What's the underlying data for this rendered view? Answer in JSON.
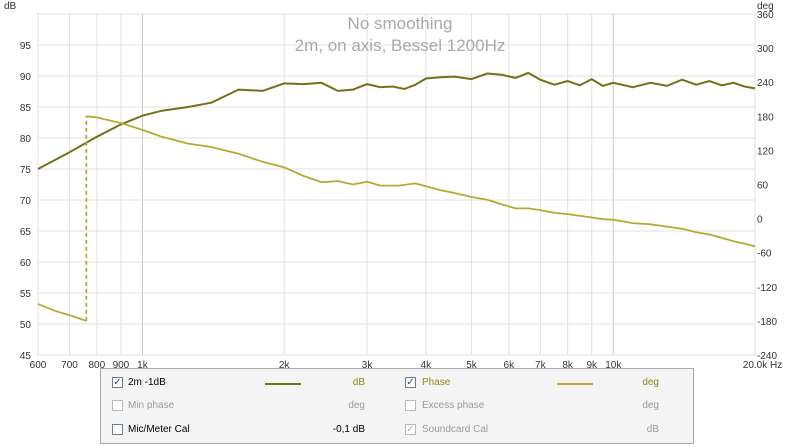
{
  "chart_data": {
    "type": "line",
    "title": "No smoothing",
    "subtitle": "2m, on axis, Bessel 1200Hz",
    "xlabel": "Hz",
    "ylabel": "dB",
    "y2label": "deg",
    "x_scale": "log",
    "xlim": [
      600,
      20000
    ],
    "ylim": [
      45,
      100
    ],
    "y2lim": [
      -240,
      360
    ],
    "x_ticks": [
      600,
      700,
      800,
      900,
      1000,
      2000,
      3000,
      4000,
      5000,
      6000,
      7000,
      8000,
      9000,
      10000,
      20000
    ],
    "x_tick_labels": [
      "600",
      "700",
      "800",
      "900",
      "1k",
      "2k",
      "3k",
      "4k",
      "5k",
      "6k",
      "7k",
      "8k",
      "9k",
      "10k",
      "20,0k"
    ],
    "y_ticks": [
      45,
      50,
      55,
      60,
      65,
      70,
      75,
      80,
      85,
      90,
      95,
      100
    ],
    "y_tick_labels": [
      "45",
      "50",
      "55",
      "60",
      "65",
      "70",
      "75",
      "80",
      "85",
      "90",
      "95",
      ""
    ],
    "y2_ticks": [
      -240,
      -180,
      -120,
      -60,
      0,
      60,
      120,
      180,
      240,
      300,
      360
    ],
    "y2_tick_labels": [
      "-240",
      "-180",
      "-120",
      "-60",
      "0",
      "60",
      "120",
      "180",
      "240",
      "300",
      "360"
    ],
    "grid": true,
    "series": [
      {
        "name": "2m -1dB",
        "axis": "left",
        "color": "#77701a",
        "x": [
          600,
          700,
          800,
          900,
          1000,
          1100,
          1250,
          1400,
          1600,
          1800,
          2000,
          2200,
          2400,
          2600,
          2800,
          3000,
          3200,
          3400,
          3600,
          3800,
          4000,
          4300,
          4600,
          5000,
          5400,
          5800,
          6200,
          6600,
          7000,
          7500,
          8000,
          8500,
          9000,
          9500,
          10000,
          11000,
          12000,
          13000,
          14000,
          15000,
          16000,
          17000,
          18000,
          19000,
          20000
        ],
        "values": [
          75,
          77.7,
          80.2,
          82.2,
          83.6,
          84.4,
          85,
          85.7,
          87.8,
          87.6,
          88.8,
          88.7,
          88.9,
          87.6,
          87.8,
          88.7,
          88.2,
          88.3,
          87.9,
          88.6,
          89.6,
          89.8,
          89.9,
          89.5,
          90.4,
          90.2,
          89.7,
          90.5,
          89.4,
          88.6,
          89.2,
          88.5,
          89.5,
          88.4,
          88.9,
          88.2,
          88.9,
          88.4,
          89.4,
          88.6,
          89.2,
          88.5,
          88.9,
          88.3,
          88.0
        ]
      },
      {
        "name": "Phase",
        "axis": "right",
        "color": "#b5ab32",
        "x": [
          600,
          650,
          700,
          760,
          760,
          800,
          900,
          1000,
          1100,
          1250,
          1400,
          1600,
          1800,
          2000,
          2200,
          2400,
          2600,
          2800,
          3000,
          3200,
          3500,
          3800,
          4000,
          4300,
          4600,
          5000,
          5400,
          5800,
          6200,
          6600,
          7000,
          7500,
          8000,
          8500,
          9000,
          9500,
          10000,
          11000,
          12000,
          13000,
          14000,
          15000,
          16000,
          17000,
          18000,
          19000,
          20000
        ],
        "values": [
          -150,
          -162,
          -170,
          -180,
          180,
          178,
          168,
          156,
          144,
          132,
          126,
          114,
          100,
          90,
          75,
          64,
          66,
          60,
          65,
          58,
          58,
          62,
          57,
          50,
          45,
          38,
          33,
          25,
          18,
          18,
          15,
          10,
          8,
          5,
          2,
          -1,
          -2,
          -8,
          -10,
          -14,
          -18,
          -24,
          -28,
          -34,
          -40,
          -44,
          -49
        ]
      }
    ]
  },
  "legend": {
    "rows": [
      {
        "left": {
          "label": "2m -1dB",
          "checked": "✓",
          "unit": "dB"
        },
        "right": {
          "label": "Phase",
          "checked": "✓",
          "unit": "deg"
        }
      },
      {
        "left": {
          "label": "Min phase",
          "checked": "",
          "unit": "deg"
        },
        "right": {
          "label": "Excess phase",
          "checked": "",
          "unit": "deg"
        }
      },
      {
        "left": {
          "label": "Mic/Meter Cal",
          "checked": "",
          "unit": "-0,1 dB"
        },
        "right": {
          "label": "Soundcard Cal",
          "checked": "✓",
          "unit": "dB"
        }
      }
    ]
  }
}
